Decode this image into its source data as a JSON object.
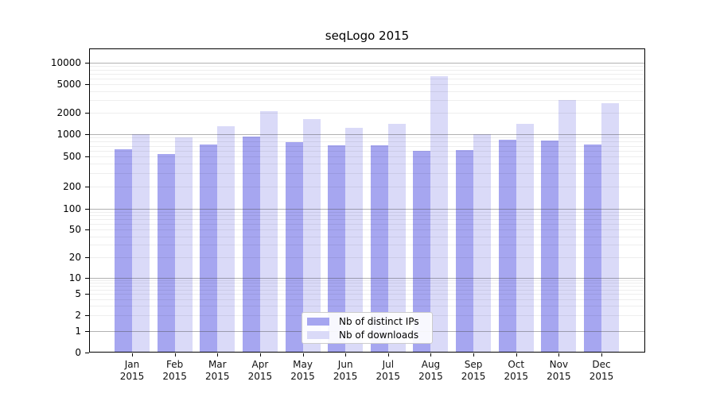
{
  "chart_data": {
    "type": "bar",
    "title": "seqLogo 2015",
    "categories": [
      "Jan",
      "Feb",
      "Mar",
      "Apr",
      "May",
      "Jun",
      "Jul",
      "Aug",
      "Sep",
      "Oct",
      "Nov",
      "Dec"
    ],
    "category_year": "2015",
    "series": [
      {
        "name": "Nb of distinct IPs",
        "color": "#a6a6f0",
        "values": [
          630,
          540,
          730,
          940,
          780,
          710,
          710,
          600,
          610,
          840,
          820,
          730
        ]
      },
      {
        "name": "Nb of downloads",
        "color": "#dadaf8",
        "values": [
          1000,
          910,
          1290,
          2100,
          1630,
          1230,
          1390,
          6550,
          1000,
          1400,
          3040,
          2710
        ]
      }
    ],
    "yscale": "symlog",
    "ytick_values": [
      0,
      1,
      2,
      5,
      10,
      20,
      50,
      100,
      200,
      500,
      1000,
      2000,
      5000,
      10000
    ],
    "ytick_labels": [
      "0",
      "1",
      "2",
      "5",
      "10",
      "20",
      "50",
      "100",
      "200",
      "500",
      "1000",
      "2000",
      "5000",
      "10000"
    ],
    "ylim_top": 16000,
    "xlabel": "",
    "ylabel": "",
    "grid": true,
    "legend_position": "lower center",
    "colors": {
      "background": "#ffffff",
      "spine": "#000000",
      "grid_major": "#a8a8a8",
      "grid_minor": "#efefef"
    }
  }
}
